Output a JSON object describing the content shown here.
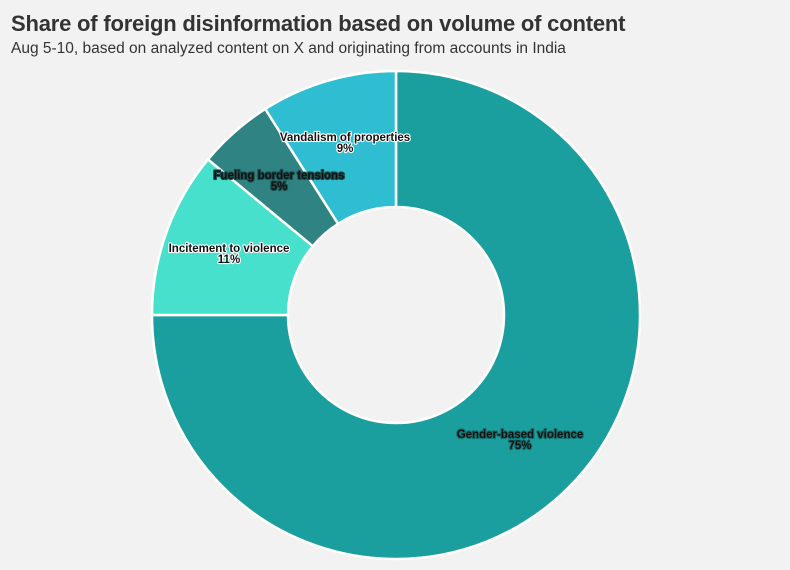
{
  "title": "Share of foreign disinformation based on volume of content",
  "subtitle": "Aug 5-10, based on analyzed content on X and originating from accounts in India",
  "chart_data": {
    "type": "pie",
    "donut": true,
    "title": "Share of foreign disinformation based on volume of content",
    "subtitle": "Aug 5-10, based on analyzed content on X and originating from accounts in India",
    "slices": [
      {
        "label": "Gender-based violence",
        "value": 75,
        "value_label": "75%",
        "color": "#1b9e9e",
        "text_color": "#ffffff",
        "halo": "#14706f"
      },
      {
        "label": "Incitement to violence",
        "value": 11,
        "value_label": "11%",
        "color": "#46e0cc",
        "text_color": "#111111",
        "halo": "#ffffff"
      },
      {
        "label": "Fueling border tensions",
        "value": 5,
        "value_label": "5%",
        "color": "#2f8383",
        "text_color": "#ffffff",
        "halo": "#1c4f4f"
      },
      {
        "label": "Vandalism of properties",
        "value": 9,
        "value_label": "9%",
        "color": "#2fbdd1",
        "text_color": "#111111",
        "halo": "#ffffff"
      }
    ],
    "start": "top",
    "direction": "clockwise"
  }
}
